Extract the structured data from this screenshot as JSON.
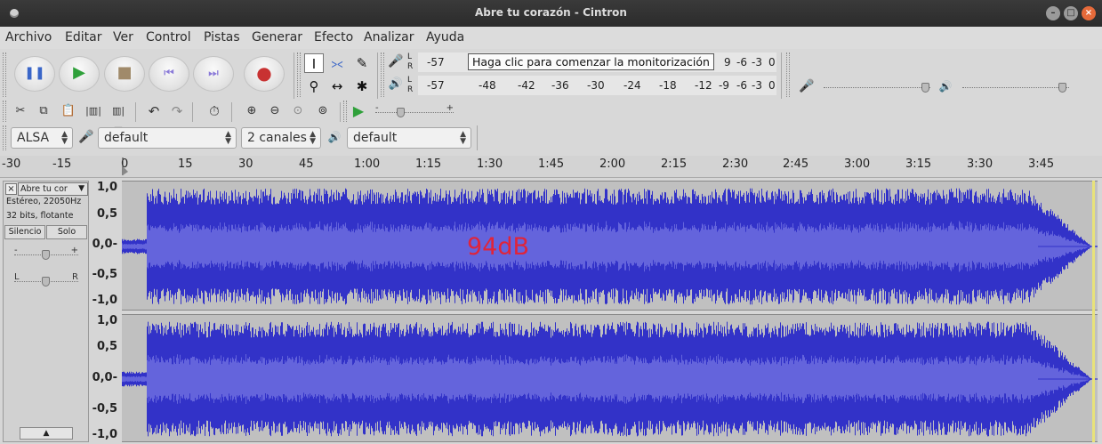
{
  "window": {
    "title": "Abre tu corazón - Cintron"
  },
  "menu": [
    "Archivo",
    "Editar",
    "Ver",
    "Control",
    "Pistas",
    "Generar",
    "Efecto",
    "Analizar",
    "Ayuda"
  ],
  "transport": {
    "pause": "pause-icon",
    "play": "play-icon",
    "stop": "stop-icon",
    "skip_start": "skip-start-icon",
    "skip_end": "skip-end-icon",
    "record": "record-icon"
  },
  "meters": {
    "record_scale_left": "-57",
    "record_tooltip": "Haga clic para comenzar la monitorización",
    "record_scale_tail": [
      "9",
      "-6",
      "-3",
      "0"
    ],
    "playback_scale": [
      "-57",
      "-48",
      "-42",
      "-36",
      "-30",
      "-24",
      "-18",
      "-12",
      "-9",
      "-6",
      "-3",
      "0"
    ],
    "channel_l": "L",
    "channel_r": "R"
  },
  "devices": {
    "host": "ALSA",
    "recording_device": "default",
    "channels": "2 canales",
    "playback_device": "default"
  },
  "timeline": {
    "ticks": [
      "-30",
      "-15",
      "0",
      "15",
      "30",
      "45",
      "1:00",
      "1:15",
      "1:30",
      "1:45",
      "2:00",
      "2:15",
      "2:30",
      "2:45",
      "3:00",
      "3:15",
      "3:30",
      "3:45"
    ]
  },
  "track": {
    "name": "Abre tu cor",
    "format": "Estéreo, 22050Hz",
    "bits": "32 bits, flotante",
    "mute": "Silencio",
    "solo": "Solo",
    "gain_minus": "-",
    "gain_plus": "+",
    "pan_left": "L",
    "pan_right": "R"
  },
  "scale": [
    "1,0",
    "0,5",
    "0,0-",
    "-0,5",
    "-1,0"
  ],
  "overlay": {
    "level_text": "94dB"
  },
  "colors": {
    "wave_outer": "#3232c8",
    "wave_inner": "#6464dc",
    "wave_bg": "#c0c0c0",
    "level_text": "#e0243a"
  }
}
